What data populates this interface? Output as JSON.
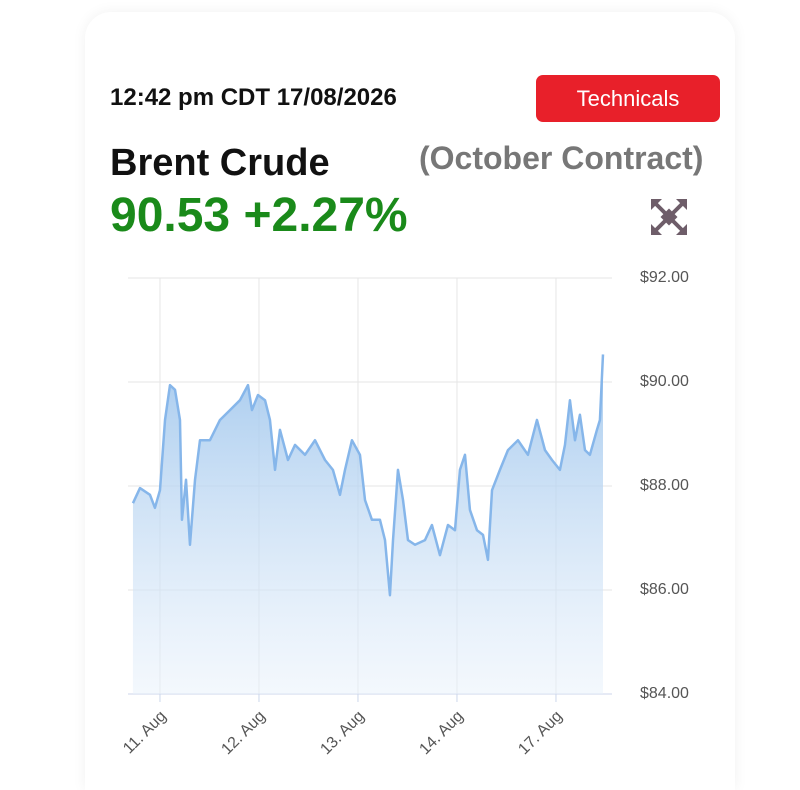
{
  "header": {
    "timestamp": "12:42 pm CDT 17/08/2026",
    "button": "Technicals",
    "name": "Brent Crude",
    "contract": "(October Contract)",
    "price": "90.53",
    "change": "+2.27%"
  },
  "chart_data": {
    "type": "line",
    "color": "#86b6ea",
    "grid": true,
    "x": [
      -0.273,
      -0.202,
      -0.101,
      -0.051,
      0,
      0.051,
      0.101,
      0.152,
      0.202,
      0.222,
      0.263,
      0.303,
      0.354,
      0.404,
      0.505,
      0.606,
      0.707,
      0.808,
      0.889,
      0.929,
      0.99,
      1.061,
      1.111,
      1.162,
      1.212,
      1.293,
      1.364,
      1.465,
      1.566,
      1.667,
      1.747,
      1.818,
      1.869,
      1.939,
      2.02,
      2.071,
      2.141,
      2.222,
      2.273,
      2.323,
      2.354,
      2.404,
      2.455,
      2.505,
      2.576,
      2.677,
      2.747,
      2.828,
      2.909,
      2.98,
      3.03,
      3.081,
      3.131,
      3.202,
      3.263,
      3.313,
      3.354,
      3.434,
      3.515,
      3.616,
      3.717,
      3.808,
      3.889,
      3.96,
      4.04,
      4.091,
      4.141,
      4.192,
      4.242,
      4.293,
      4.343,
      4.414,
      4.444,
      4.475
    ],
    "values": [
      87.67,
      87.96,
      87.83,
      87.58,
      87.92,
      89.27,
      89.94,
      89.85,
      89.27,
      87.35,
      88.12,
      86.87,
      88.12,
      88.88,
      88.88,
      89.27,
      89.46,
      89.65,
      89.94,
      89.46,
      89.75,
      89.65,
      89.27,
      88.31,
      89.08,
      88.5,
      88.79,
      88.6,
      88.88,
      88.5,
      88.31,
      87.83,
      88.31,
      88.88,
      88.6,
      87.73,
      87.35,
      87.35,
      86.96,
      85.9,
      86.96,
      88.31,
      87.73,
      86.96,
      86.87,
      86.96,
      87.25,
      86.67,
      87.25,
      87.15,
      88.31,
      88.6,
      87.54,
      87.15,
      87.06,
      86.58,
      87.92,
      88.31,
      88.69,
      88.88,
      88.6,
      89.27,
      88.69,
      88.5,
      88.31,
      88.79,
      89.65,
      88.88,
      89.37,
      88.69,
      88.6,
      89.08,
      89.27,
      90.53
    ],
    "xlim": [
      -0.323,
      4.566
    ],
    "xticks": [
      {
        "value": 0,
        "label": "11. Aug"
      },
      {
        "value": 1,
        "label": "12. Aug"
      },
      {
        "value": 2,
        "label": "13. Aug"
      },
      {
        "value": 3,
        "label": "14. Aug"
      },
      {
        "value": 4,
        "label": "17. Aug"
      }
    ],
    "ylim": [
      84,
      92
    ],
    "yticks": [
      {
        "value": 84,
        "label": "$84.00"
      },
      {
        "value": 86,
        "label": "$86.00"
      },
      {
        "value": 88,
        "label": "$88.00"
      },
      {
        "value": 90,
        "label": "$90.00"
      },
      {
        "value": 92,
        "label": "$92.00"
      }
    ]
  }
}
